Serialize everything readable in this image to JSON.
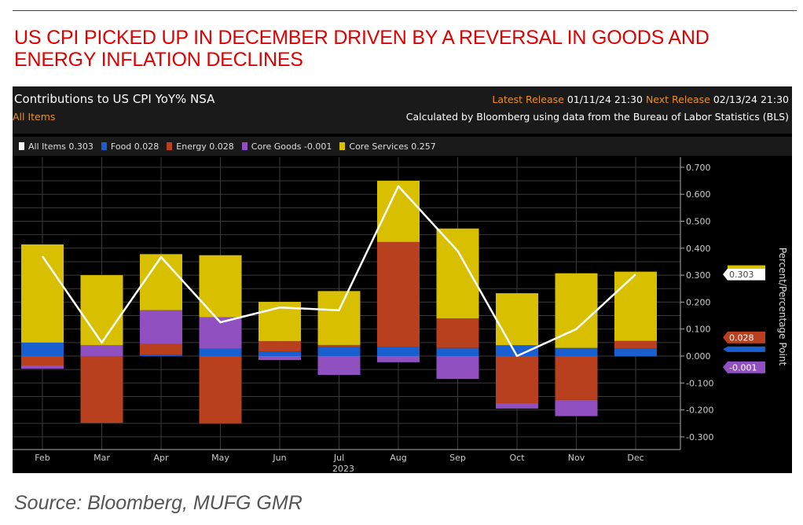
{
  "headline": "US CPI PICKED UP IN DECEMBER DRIVEN BY A REVERSAL IN GOODS AND ENERGY INFLATION  DECLINES",
  "source": "Source: Bloomberg, MUFG GMR",
  "header": {
    "title": "Contributions to US CPI YoY% NSA",
    "subtitle": "All Items",
    "latest_label": "Latest Release",
    "latest_value": "01/11/24 21:30",
    "next_label": "Next Release",
    "next_value": "02/13/24 21:30",
    "calc_note": "Calculated by Bloomberg using data from the Bureau of Labor Statistics (BLS)"
  },
  "chart_data": {
    "type": "bar",
    "stacked": true,
    "title": "Contributions to US CPI YoY% NSA",
    "ylabel": "Percent/Percentage Point",
    "xlabel": "2023",
    "ylim": [
      -0.3,
      0.7
    ],
    "yticks": [
      "0.700",
      "0.600",
      "0.500",
      "0.400",
      "0.300",
      "0.200",
      "0.100",
      "0.000",
      "-0.100",
      "-0.200",
      "-0.300"
    ],
    "ytick_values": [
      0.7,
      0.6,
      0.5,
      0.4,
      0.3,
      0.2,
      0.1,
      0,
      -0.1,
      -0.2,
      -0.3
    ],
    "grid": true,
    "legend_position": "top",
    "categories": [
      "Feb",
      "Mar",
      "Apr",
      "May",
      "Jun",
      "Jul",
      "Aug",
      "Sep",
      "Oct",
      "Nov",
      "Dec"
    ],
    "series": [
      {
        "name": "Food",
        "legend": "Food 0.028",
        "color": "#1a5fd0",
        "values": [
          0.05,
          0.0,
          0.005,
          0.027,
          0.017,
          0.035,
          0.035,
          0.03,
          0.04,
          0.03,
          0.028
        ]
      },
      {
        "name": "Energy",
        "legend": "Energy 0.028",
        "color": "#b8401e",
        "values": [
          -0.035,
          -0.248,
          0.04,
          -0.25,
          0.038,
          0.006,
          0.388,
          0.11,
          -0.175,
          -0.163,
          0.028
        ]
      },
      {
        "name": "Core Goods",
        "legend": "Core Goods -0.001",
        "color": "#9050c0",
        "values": [
          -0.012,
          0.04,
          0.125,
          0.117,
          -0.015,
          -0.07,
          -0.023,
          -0.085,
          -0.02,
          -0.06,
          -0.001
        ]
      },
      {
        "name": "Core Services",
        "legend": "Core Services 0.257",
        "color": "#d8c000",
        "values": [
          0.364,
          0.26,
          0.208,
          0.23,
          0.146,
          0.2,
          0.227,
          0.333,
          0.193,
          0.277,
          0.257
        ]
      }
    ],
    "line": {
      "name": "All Items",
      "legend": "All Items 0.303",
      "color": "#ffffff",
      "values": [
        0.37,
        0.05,
        0.367,
        0.125,
        0.18,
        0.17,
        0.63,
        0.39,
        0.0,
        0.1,
        0.303
      ]
    },
    "last_value_tags": [
      {
        "label": "0.303",
        "color": "#ffffff",
        "text_color": "#444444",
        "value": 0.303
      },
      {
        "label": "0.028",
        "color": "#b8401e",
        "text_color": "#ffffff",
        "value": 0.028
      },
      {
        "label": "0.028",
        "color": "#1a5fd0",
        "text_color": "#ffffff",
        "value": 0.028
      },
      {
        "label": "-0.001",
        "color": "#9050c0",
        "text_color": "#ffffff",
        "value": -0.001
      }
    ]
  }
}
